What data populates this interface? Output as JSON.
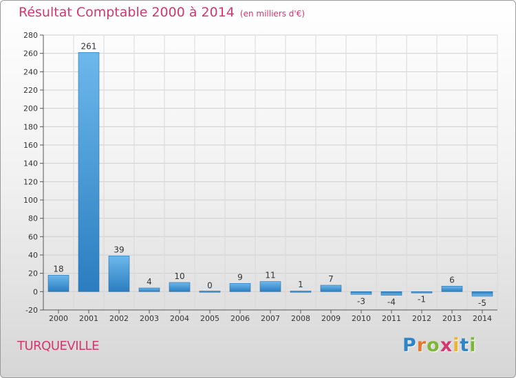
{
  "title": "Résultat Comptable 2000 à 2014",
  "subtitle": "(en milliers d'€)",
  "city": "TURQUEVILLE",
  "logo": {
    "letters": [
      "P",
      "r",
      "o",
      "x",
      "i",
      "t",
      "i"
    ],
    "colors": [
      "#2e84c6",
      "#e8772e",
      "#7fb63a",
      "#d4376e",
      "#f0b12c",
      "#2e84c6",
      "#7fb63a"
    ]
  },
  "colors": {
    "title": "#d4376e",
    "bar_light": "#6db8ec",
    "bar_dark": "#2a7dbf"
  },
  "chart_data": {
    "type": "bar",
    "categories": [
      "2000",
      "2001",
      "2002",
      "2003",
      "2004",
      "2005",
      "2006",
      "2007",
      "2008",
      "2009",
      "2010",
      "2011",
      "2012",
      "2013",
      "2014"
    ],
    "values": [
      18,
      261,
      39,
      4,
      10,
      0,
      9,
      11,
      1,
      7,
      -3,
      -4,
      -1,
      6,
      -5
    ],
    "ylim": [
      -20,
      280
    ],
    "yticks": [
      -20,
      0,
      20,
      40,
      60,
      80,
      100,
      120,
      140,
      160,
      180,
      200,
      220,
      240,
      260,
      280
    ],
    "grid": true
  }
}
